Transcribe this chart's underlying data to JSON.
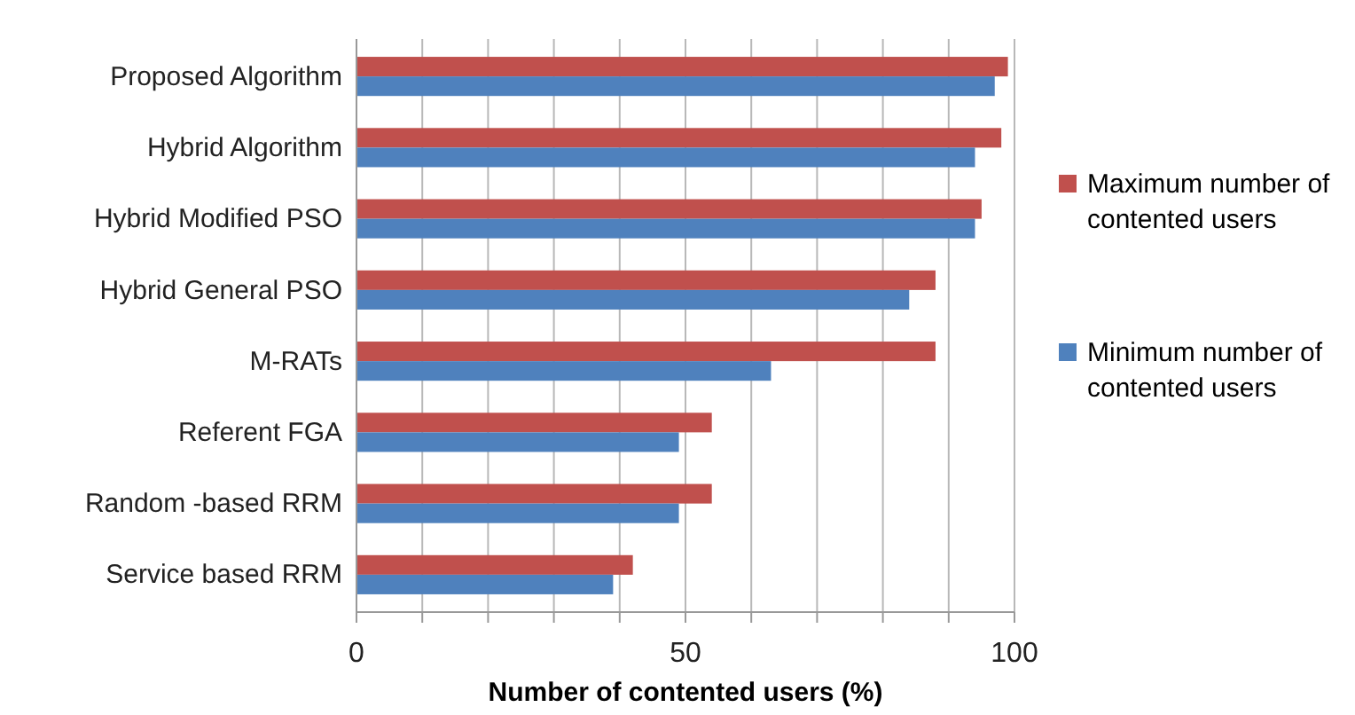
{
  "chart_data": {
    "type": "bar",
    "orientation": "horizontal",
    "xlabel": "Number of contented users (%)",
    "categories": [
      "Proposed Algorithm",
      "Hybrid Algorithm",
      "Hybrid Modified PSO",
      "Hybrid General PSO",
      "M-RATs",
      "Referent FGA",
      "Random -based RRM",
      "Service based RRM"
    ],
    "series": [
      {
        "name": "Maximum number of contented users",
        "color": "#c0504d",
        "values": [
          99,
          98,
          95,
          88,
          88,
          54,
          54,
          42
        ]
      },
      {
        "name": "Minimum number of contented users",
        "color": "#4f81bd",
        "values": [
          97,
          94,
          94,
          84,
          63,
          49,
          49,
          39
        ]
      }
    ],
    "xlim": [
      0,
      100
    ],
    "xticks": [
      0,
      {
        "value": 10,
        "label": null
      },
      {
        "value": 20,
        "label": null
      },
      {
        "value": 30,
        "label": null
      },
      {
        "value": 40,
        "label": null
      },
      50,
      {
        "value": 60,
        "label": null
      },
      {
        "value": 70,
        "label": null
      },
      {
        "value": 80,
        "label": null
      },
      {
        "value": 90,
        "label": null
      },
      100
    ],
    "grid": "x",
    "legend": "right"
  }
}
